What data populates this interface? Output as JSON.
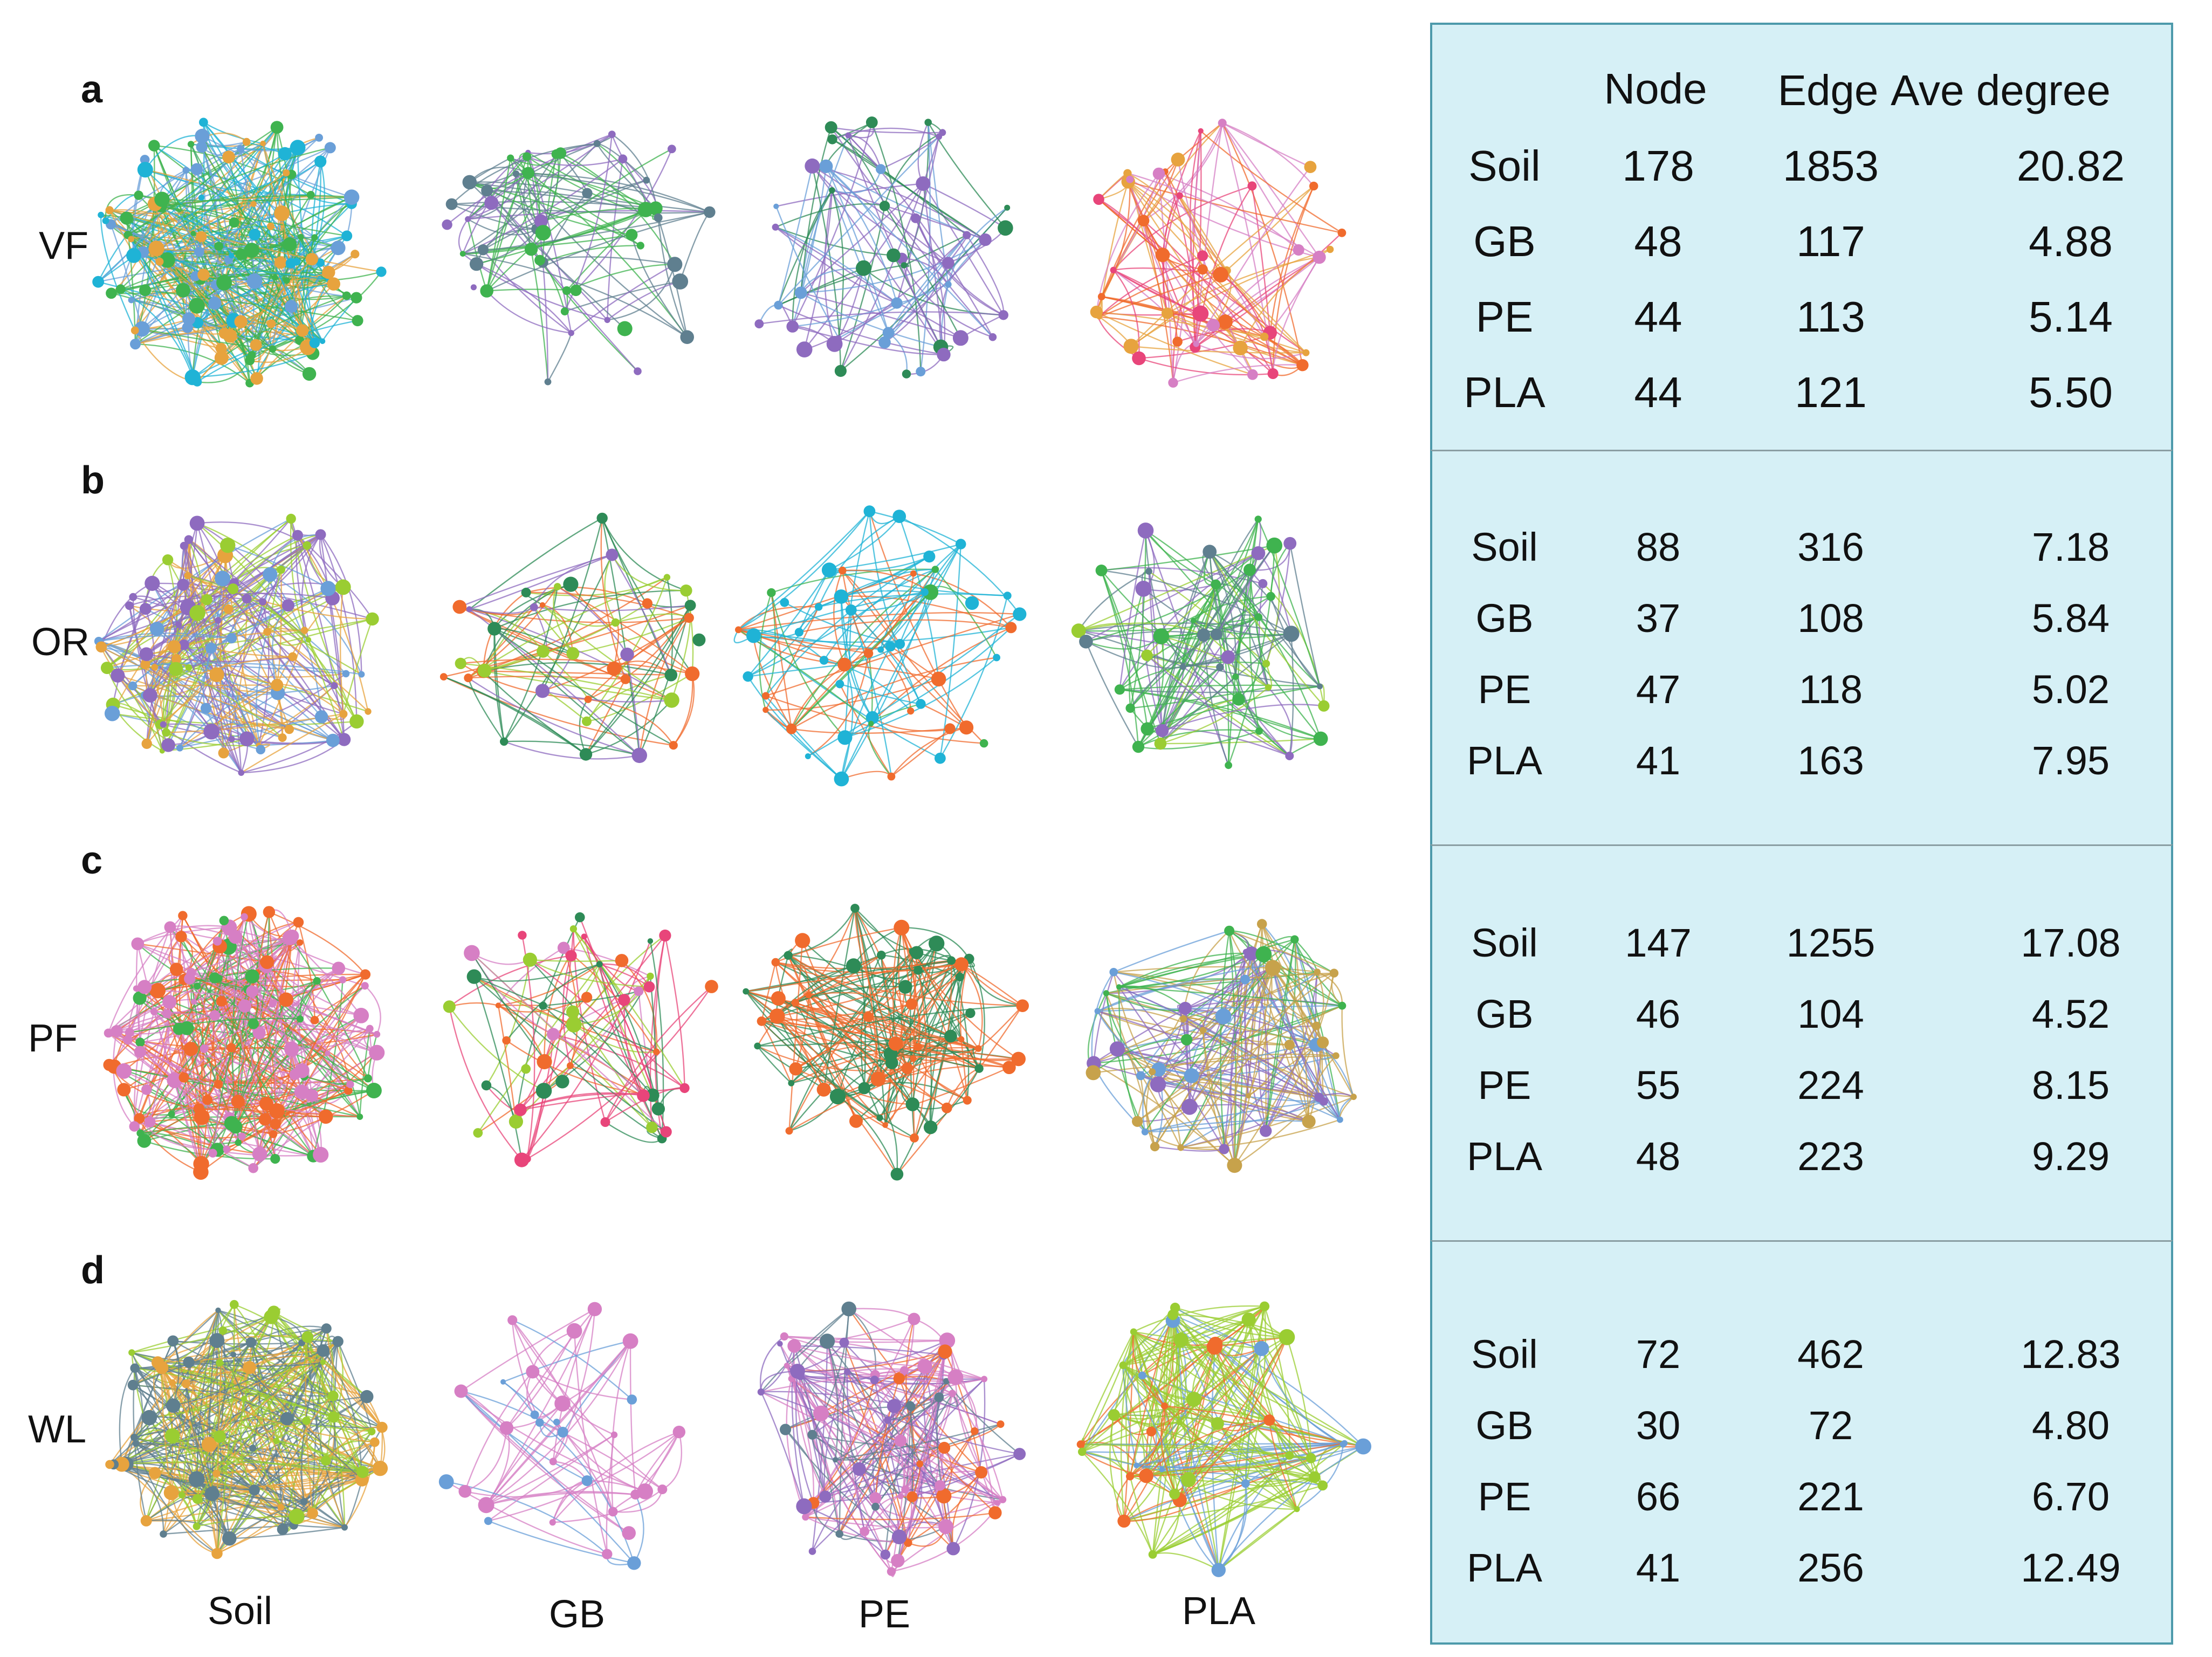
{
  "panels": [
    {
      "letter": "a",
      "row_label": "VF"
    },
    {
      "letter": "b",
      "row_label": "OR"
    },
    {
      "letter": "c",
      "row_label": "PF"
    },
    {
      "letter": "d",
      "row_label": "WL"
    }
  ],
  "columns": [
    "Soil",
    "GB",
    "PE",
    "PLA"
  ],
  "table": {
    "headers": [
      "Node",
      "Edge",
      "Ave degree"
    ],
    "groups": [
      {
        "rows": [
          {
            "name": "Soil",
            "node": "178",
            "edge": "1853",
            "ave": "20.82"
          },
          {
            "name": "GB",
            "node": "48",
            "edge": "117",
            "ave": "4.88"
          },
          {
            "name": "PE",
            "node": "44",
            "edge": "113",
            "ave": "5.14"
          },
          {
            "name": "PLA",
            "node": "44",
            "edge": "121",
            "ave": "5.50"
          }
        ]
      },
      {
        "rows": [
          {
            "name": "Soil",
            "node": "88",
            "edge": "316",
            "ave": "7.18"
          },
          {
            "name": "GB",
            "node": "37",
            "edge": "108",
            "ave": "5.84"
          },
          {
            "name": "PE",
            "node": "47",
            "edge": "118",
            "ave": "5.02"
          },
          {
            "name": "PLA",
            "node": "41",
            "edge": "163",
            "ave": "7.95"
          }
        ]
      },
      {
        "rows": [
          {
            "name": "Soil",
            "node": "147",
            "edge": "1255",
            "ave": "17.08"
          },
          {
            "name": "GB",
            "node": "46",
            "edge": "104",
            "ave": "4.52"
          },
          {
            "name": "PE",
            "node": "55",
            "edge": "224",
            "ave": "8.15"
          },
          {
            "name": "PLA",
            "node": "48",
            "edge": "223",
            "ave": "9.29"
          }
        ]
      },
      {
        "rows": [
          {
            "name": "Soil",
            "node": "72",
            "edge": "462",
            "ave": "12.83"
          },
          {
            "name": "GB",
            "node": "30",
            "edge": "72",
            "ave": "4.80"
          },
          {
            "name": "PE",
            "node": "66",
            "edge": "221",
            "ave": "6.70"
          },
          {
            "name": "PLA",
            "node": "41",
            "edge": "256",
            "ave": "12.49"
          }
        ]
      }
    ]
  },
  "palette": [
    "#e8457a",
    "#3fb34f",
    "#1fb3d6",
    "#f06b2d",
    "#8e6bbf",
    "#6a9fd8",
    "#e7a33e",
    "#9acd32",
    "#d67fc4",
    "#2e8b57",
    "#c7a24b",
    "#5f7f8f"
  ]
}
